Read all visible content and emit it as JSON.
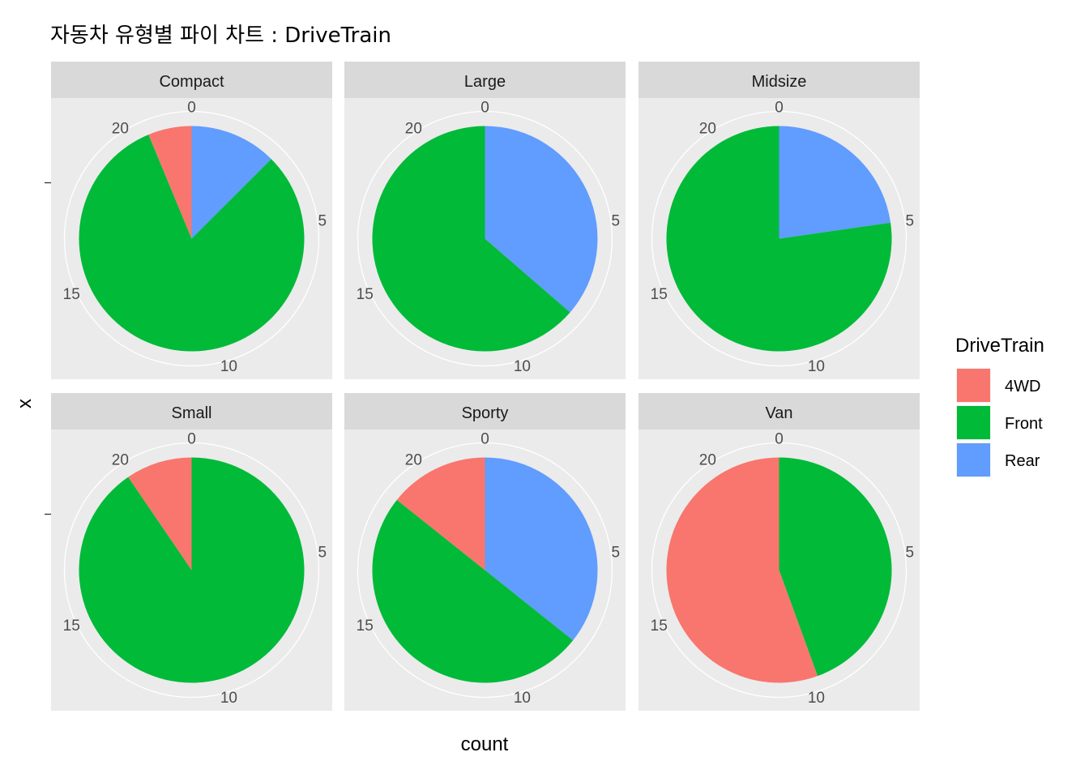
{
  "chart_data": {
    "type": "pie",
    "title": "자동차 유형별 파이 차트 : DriveTrain",
    "xlabel": "count",
    "ylabel": "x",
    "theta_breaks": [
      0,
      5,
      10,
      15,
      20
    ],
    "theta_max": 22,
    "legend": {
      "title": "DriveTrain",
      "position": "right",
      "entries": [
        {
          "name": "4WD",
          "color": "#F8766D"
        },
        {
          "name": "Front",
          "color": "#00BA38"
        },
        {
          "name": "Rear",
          "color": "#619CFF"
        }
      ]
    },
    "facets": [
      {
        "name": "Compact",
        "total": 16,
        "segments": [
          {
            "name": "Rear",
            "value": 2
          },
          {
            "name": "Front",
            "value": 13
          },
          {
            "name": "4WD",
            "value": 1
          }
        ]
      },
      {
        "name": "Large",
        "total": 11,
        "segments": [
          {
            "name": "Rear",
            "value": 4
          },
          {
            "name": "Front",
            "value": 7
          },
          {
            "name": "4WD",
            "value": 0
          }
        ]
      },
      {
        "name": "Midsize",
        "total": 22,
        "segments": [
          {
            "name": "Rear",
            "value": 5
          },
          {
            "name": "Front",
            "value": 17
          },
          {
            "name": "4WD",
            "value": 0
          }
        ]
      },
      {
        "name": "Small",
        "total": 21,
        "segments": [
          {
            "name": "Rear",
            "value": 0
          },
          {
            "name": "Front",
            "value": 19
          },
          {
            "name": "4WD",
            "value": 2
          }
        ]
      },
      {
        "name": "Sporty",
        "total": 14,
        "segments": [
          {
            "name": "Rear",
            "value": 5
          },
          {
            "name": "Front",
            "value": 7
          },
          {
            "name": "4WD",
            "value": 2
          }
        ]
      },
      {
        "name": "Van",
        "total": 9,
        "segments": [
          {
            "name": "Rear",
            "value": 0
          },
          {
            "name": "Front",
            "value": 4
          },
          {
            "name": "4WD",
            "value": 5
          }
        ]
      }
    ]
  }
}
